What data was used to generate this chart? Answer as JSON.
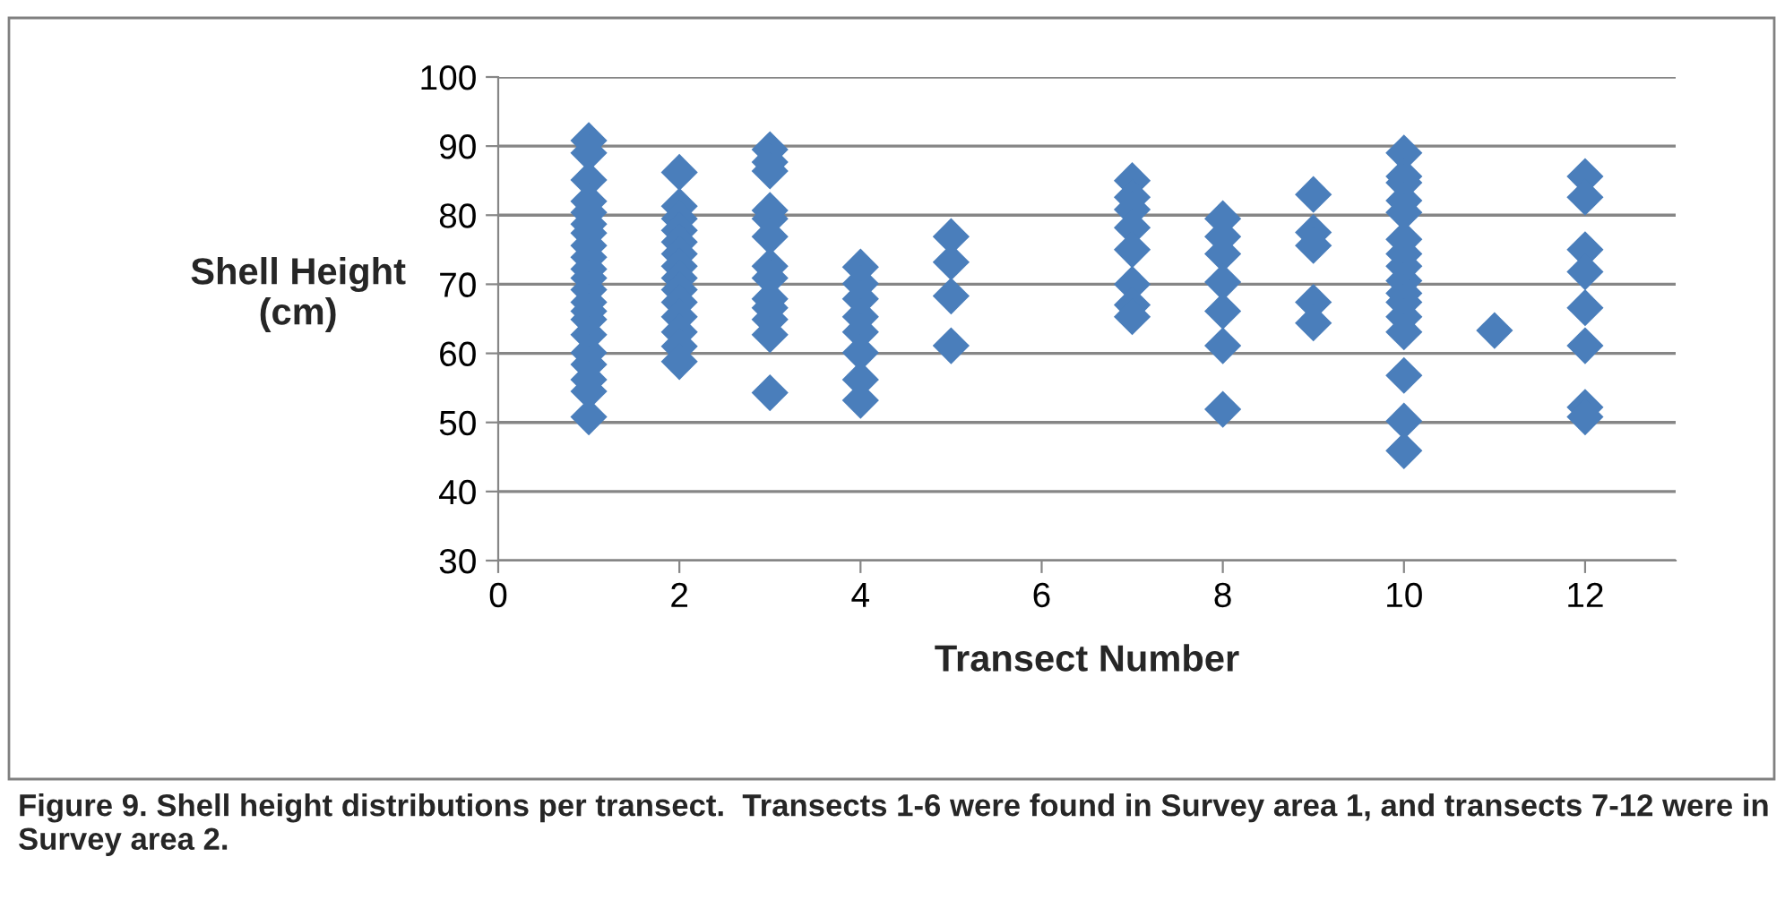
{
  "chart_data": {
    "type": "scatter",
    "xlabel": "Transect Number",
    "ylabel": "Shell Height\n(cm)",
    "x": [
      1,
      1,
      1,
      1,
      1,
      1,
      1,
      1,
      1,
      1,
      1,
      1,
      1,
      1,
      1,
      1,
      1,
      1,
      1,
      1,
      1,
      2,
      2,
      2,
      2,
      2,
      2,
      2,
      2,
      2,
      2,
      2,
      2,
      2,
      2,
      3,
      3,
      3,
      3,
      3,
      3,
      3,
      3,
      3,
      3,
      3,
      3,
      3,
      4,
      4,
      4,
      4,
      4,
      4,
      4,
      4,
      5,
      5,
      5,
      5,
      7,
      7,
      7,
      7,
      7,
      7,
      7,
      7,
      8,
      8,
      8,
      8,
      8,
      8,
      8,
      9,
      9,
      9,
      9,
      9,
      10,
      10,
      10,
      10,
      10,
      10,
      10,
      10,
      10,
      10,
      10,
      10,
      10,
      10,
      10,
      10,
      11,
      12,
      12,
      12,
      12,
      12,
      12,
      12,
      12
    ],
    "series": [
      {
        "color": "#4a7ebb",
        "values": [
          90.8,
          89,
          85.1,
          82,
          80.4,
          78.7,
          77.4,
          75.6,
          73.9,
          72.2,
          70.9,
          69.2,
          67.4,
          66.1,
          64.9,
          62.7,
          60.1,
          58.4,
          56.2,
          54.5,
          50.8,
          86.2,
          81.3,
          79.5,
          77.8,
          76.1,
          74.4,
          72.6,
          70.9,
          69.2,
          67.4,
          65.3,
          63.1,
          61,
          58.8,
          89.5,
          87.7,
          86.4,
          80.7,
          79.5,
          76.9,
          72.6,
          70.9,
          67.9,
          66.6,
          64.9,
          62.7,
          54.3,
          72.5,
          70.1,
          67.9,
          65.3,
          63.1,
          60.1,
          56.2,
          53.2,
          76.9,
          73.2,
          68.3,
          61.1,
          85,
          82.6,
          80.8,
          78.2,
          75,
          70,
          67,
          65.3,
          79.5,
          76.9,
          74.4,
          70.3,
          66.1,
          61.1,
          51.9,
          83,
          77.5,
          75.6,
          67.4,
          64.4,
          89,
          85.6,
          84.7,
          82.1,
          80.4,
          76.5,
          74.4,
          72.6,
          70.5,
          68.7,
          67.4,
          65.3,
          63.1,
          56.8,
          50.2,
          45.9,
          63.3,
          85.6,
          82.6,
          75,
          71.8,
          66.6,
          61.1,
          52.2,
          50.8
        ]
      }
    ],
    "xlim": [
      0,
      13
    ],
    "xticks": [
      0,
      2,
      4,
      6,
      8,
      10,
      12
    ],
    "ylim": [
      30,
      100
    ],
    "yticks": [
      30,
      40,
      50,
      60,
      70,
      80,
      90,
      100
    ],
    "grid": "y",
    "marker": "diamond",
    "legend": false,
    "annotations": [
      "Figure 9. Shell height distributions per transect.  Transects 1-6 were found in Survey area 1, and transects 7-12 were in Survey area 2."
    ]
  }
}
